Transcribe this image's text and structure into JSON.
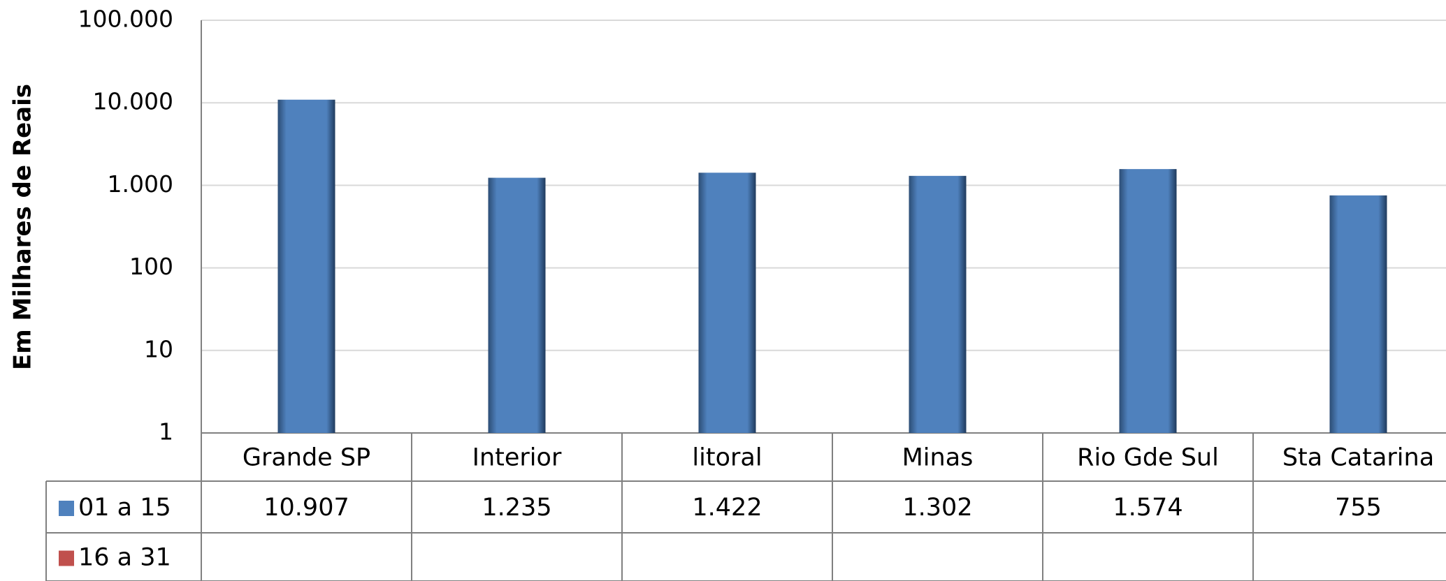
{
  "chart_data": {
    "type": "bar",
    "ylabel": "Em Milhares de Reais",
    "categories": [
      "Grande SP",
      "Interior",
      "litoral",
      "Minas",
      "Rio Gde Sul",
      "Sta Catarina"
    ],
    "series": [
      {
        "name": "01 a 15",
        "color": "#4f81bd",
        "values": [
          10907,
          1235,
          1422,
          1302,
          1574,
          755
        ],
        "value_labels": [
          "10.907",
          "1.235",
          "1.422",
          "1.302",
          "1.574",
          "755"
        ]
      },
      {
        "name": "16 a 31",
        "color": "#c0504d",
        "values": [
          null,
          null,
          null,
          null,
          null,
          null
        ]
      }
    ],
    "log_scale": true,
    "ylim": [
      1,
      100000
    ],
    "yticks": [
      1,
      10,
      100,
      {
        "value": 1000,
        "label": "1.000"
      },
      {
        "value": 10000,
        "label": "10.000"
      },
      {
        "value": 100000,
        "label": "100.000"
      }
    ],
    "grid": true
  }
}
